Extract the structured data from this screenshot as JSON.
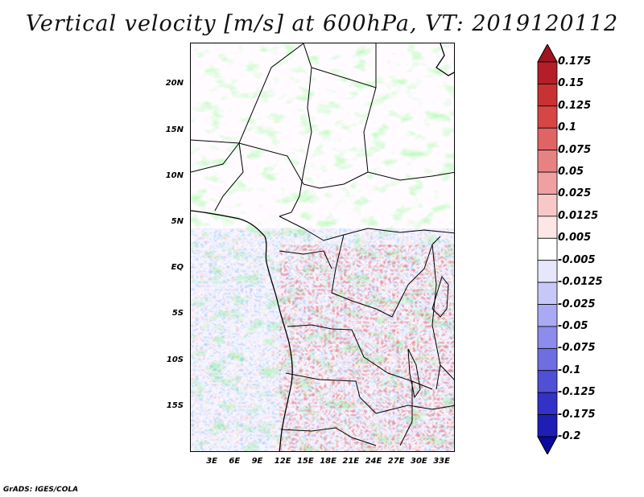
{
  "title": "Vertical velocity [m/s] at 600hPa, VT: 2019120112",
  "credit": "GrADS: IGES/COLA",
  "map": {
    "variable": "Vertical velocity",
    "units": "m/s",
    "level": "600hPa",
    "valid_time": "2019120112",
    "lat_labels": [
      "20N",
      "15N",
      "10N",
      "5N",
      "EQ",
      "5S",
      "10S",
      "15S"
    ],
    "lat_values": [
      20,
      15,
      10,
      5,
      0,
      -5,
      -10,
      -15
    ],
    "lon_labels": [
      "3E",
      "6E",
      "9E",
      "12E",
      "15E",
      "18E",
      "21E",
      "24E",
      "27E",
      "30E",
      "33E"
    ],
    "lon_values": [
      3,
      6,
      9,
      12,
      15,
      18,
      21,
      24,
      27,
      30,
      33
    ],
    "lat_range": [
      -20,
      24.5
    ],
    "lon_range": [
      0,
      35
    ]
  },
  "colorbar": {
    "labels": [
      "0.175",
      "0.15",
      "0.125",
      "0.1",
      "0.075",
      "0.05",
      "0.025",
      "0.0125",
      "0.005",
      "-0.005",
      "-0.0125",
      "-0.025",
      "-0.05",
      "-0.075",
      "-0.1",
      "-0.125",
      "-0.175",
      "-0.2"
    ],
    "colors": [
      "#a0141e",
      "#b41e28",
      "#c83232",
      "#d64646",
      "#e06464",
      "#e88282",
      "#f0a0a0",
      "#f8c8c8",
      "#fce6e6",
      "#ffffff",
      "#e6e6fc",
      "#c8c8f8",
      "#aaaaf4",
      "#8c8cec",
      "#6e6ee2",
      "#5050d6",
      "#3232c8",
      "#1e1eb4",
      "#0a0a9c"
    ]
  },
  "colors": {
    "land_border": "#000000",
    "positive": "#e05050",
    "negative": "#6464dc"
  }
}
